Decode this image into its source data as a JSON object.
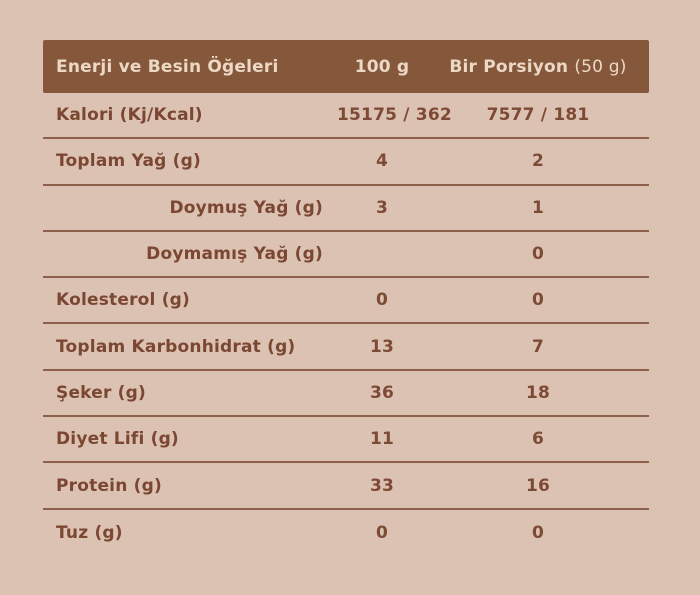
{
  "page": {
    "background_color": "#dcc2b2"
  },
  "nutrition_table": {
    "colors": {
      "header_background": "#85573b",
      "header_text": "#ecd9c5",
      "body_text": "#7b4733",
      "divider_line": "#8c604a"
    },
    "header": {
      "column1": "Enerji ve Besin Öğeleri",
      "column2": "100 g",
      "column3_main": "Bir Porsiyon",
      "column3_note": "(50 g)"
    },
    "rows": [
      {
        "label": "Kalori (Kj/Kcal)",
        "indent": false,
        "per_100g": "15175 / 362",
        "per_portion": "7577 / 181"
      },
      {
        "label": "Toplam Yağ (g)",
        "indent": false,
        "per_100g": "4",
        "per_portion": "2"
      },
      {
        "label": "Doymuş Yağ (g)",
        "indent": true,
        "per_100g": "3",
        "per_portion": "1"
      },
      {
        "label": "Doymamış Yağ (g)",
        "indent": true,
        "per_100g": "",
        "per_portion": "0"
      },
      {
        "label": "Kolesterol (g)",
        "indent": false,
        "per_100g": "0",
        "per_portion": "0"
      },
      {
        "label": "Toplam Karbonhidrat (g)",
        "indent": false,
        "per_100g": "13",
        "per_portion": "7"
      },
      {
        "label": "Şeker (g)",
        "indent": false,
        "per_100g": "36",
        "per_portion": "18"
      },
      {
        "label": "Diyet Lifi (g)",
        "indent": false,
        "per_100g": "11",
        "per_portion": "6"
      },
      {
        "label": "Protein (g)",
        "indent": false,
        "per_100g": "33",
        "per_portion": "16"
      },
      {
        "label": "Tuz (g)",
        "indent": false,
        "per_100g": "0",
        "per_portion": "0"
      }
    ]
  }
}
